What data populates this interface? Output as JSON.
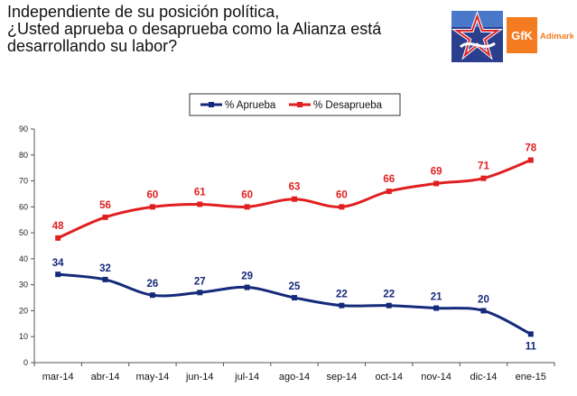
{
  "title": {
    "line1": "Independiente de su posición política,",
    "line2": "¿Usted aprueba o desaprueba como la Alianza está",
    "line3": "desarrollando su labor?"
  },
  "logos": {
    "left_icon": "star-emblem-icon",
    "gfk_text": "GfK",
    "adimark_text": "Adimark",
    "brand_color": "#f47b20"
  },
  "chart_data": {
    "type": "line",
    "title": "",
    "xlabel": "",
    "ylabel": "",
    "ylim": [
      0,
      90
    ],
    "yticks": [
      0,
      10,
      20,
      30,
      40,
      50,
      60,
      70,
      80,
      90
    ],
    "grid": false,
    "legend_position": "top-center",
    "categories": [
      "mar-14",
      "abr-14",
      "may-14",
      "jun-14",
      "jul-14",
      "ago-14",
      "sep-14",
      "oct-14",
      "nov-14",
      "dic-14",
      "ene-15"
    ],
    "series": [
      {
        "name": "% Aprueba",
        "color": "#142a7a",
        "values": [
          34,
          32,
          26,
          27,
          29,
          25,
          22,
          22,
          21,
          20,
          11
        ]
      },
      {
        "name": "% Desaprueba",
        "color": "#e02020",
        "values": [
          48,
          56,
          60,
          61,
          60,
          63,
          60,
          66,
          69,
          71,
          78
        ]
      }
    ]
  }
}
